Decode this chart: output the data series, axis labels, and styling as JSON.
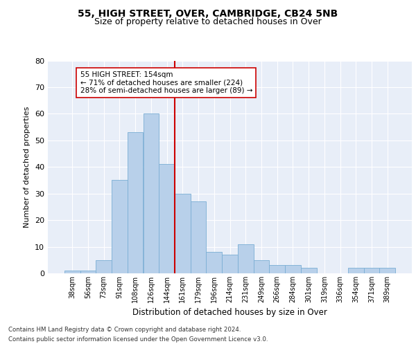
{
  "title1": "55, HIGH STREET, OVER, CAMBRIDGE, CB24 5NB",
  "title2": "Size of property relative to detached houses in Over",
  "xlabel": "Distribution of detached houses by size in Over",
  "ylabel": "Number of detached properties",
  "categories": [
    "38sqm",
    "56sqm",
    "73sqm",
    "91sqm",
    "108sqm",
    "126sqm",
    "144sqm",
    "161sqm",
    "179sqm",
    "196sqm",
    "214sqm",
    "231sqm",
    "249sqm",
    "266sqm",
    "284sqm",
    "301sqm",
    "319sqm",
    "336sqm",
    "354sqm",
    "371sqm",
    "389sqm"
  ],
  "values": [
    1,
    1,
    5,
    35,
    53,
    60,
    41,
    30,
    27,
    8,
    7,
    11,
    5,
    3,
    3,
    2,
    0,
    0,
    2,
    2,
    2
  ],
  "bar_color": "#b8d0ea",
  "bar_edge_color": "#7aaed4",
  "vline_color": "#cc0000",
  "annotation_text": "55 HIGH STREET: 154sqm\n← 71% of detached houses are smaller (224)\n28% of semi-detached houses are larger (89) →",
  "annotation_box_color": "#ffffff",
  "annotation_box_edge": "#cc0000",
  "ylim": [
    0,
    80
  ],
  "yticks": [
    0,
    10,
    20,
    30,
    40,
    50,
    60,
    70,
    80
  ],
  "axes_bg_color": "#e8eef8",
  "grid_color": "#ffffff",
  "footer1": "Contains HM Land Registry data © Crown copyright and database right 2024.",
  "footer2": "Contains public sector information licensed under the Open Government Licence v3.0."
}
